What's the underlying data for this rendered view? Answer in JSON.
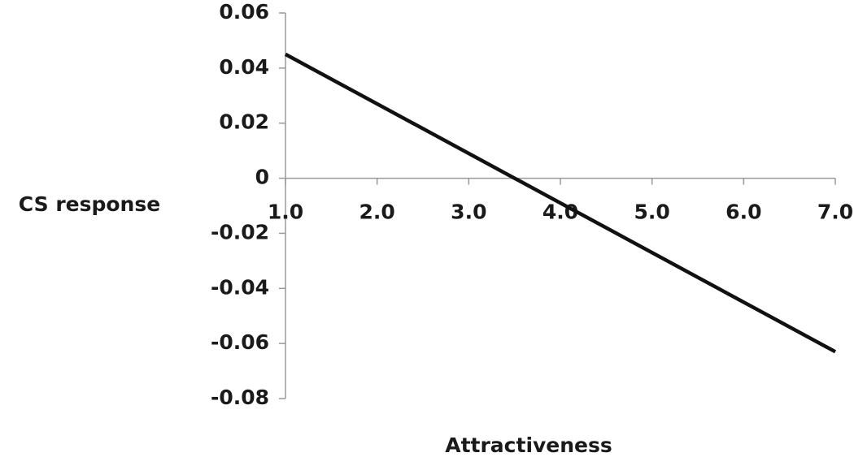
{
  "chart_data": {
    "type": "line",
    "x_label": "Attractiveness",
    "y_label": "CS response",
    "x": [
      1,
      7
    ],
    "series": [
      {
        "color": "#111111",
        "values": [
          0.045,
          -0.063
        ]
      }
    ],
    "xlim": [
      1,
      7
    ],
    "xticks": [
      {
        "value": 1,
        "label": "1.0"
      },
      {
        "value": 2,
        "label": "2.0"
      },
      {
        "value": 3,
        "label": "3.0"
      },
      {
        "value": 4,
        "label": "4.0"
      },
      {
        "value": 5,
        "label": "5.0"
      },
      {
        "value": 6,
        "label": "6.0"
      },
      {
        "value": 7,
        "label": "7.0"
      }
    ],
    "ylim": [
      -0.08,
      0.06
    ],
    "yticks": [
      0.06,
      0.04,
      0.02,
      0,
      -0.02,
      -0.04,
      -0.06,
      -0.08
    ],
    "grid": false
  }
}
